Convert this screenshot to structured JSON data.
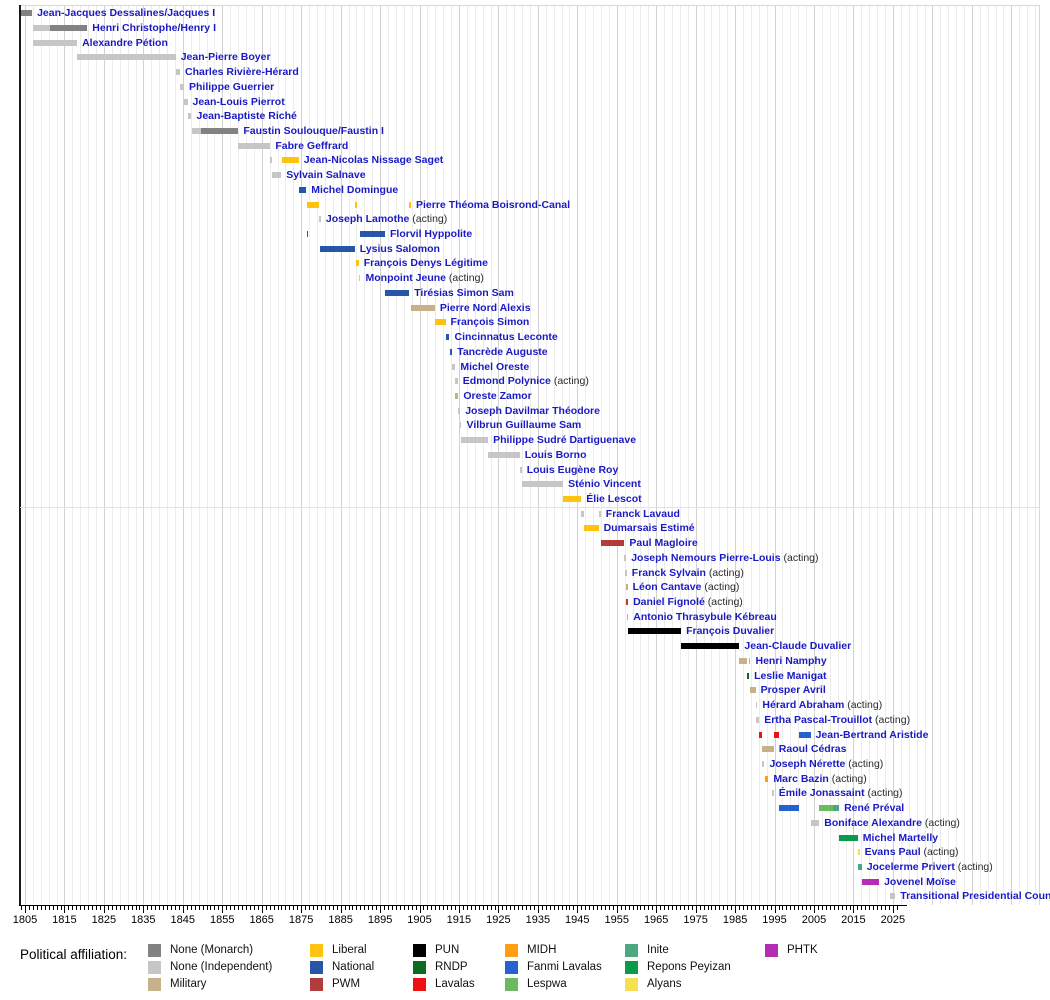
{
  "chart_data": {
    "type": "timeline",
    "axis": {
      "unit": "year",
      "start": 1805,
      "end": 2025,
      "label_step": 10,
      "minor_tick_step": 1,
      "minor_tick_start": 1804,
      "minor_tick_end": 2026,
      "grid_step": 2,
      "grid_extends_to": 2061,
      "tick_labels": [
        "1805",
        "1815",
        "1825",
        "1835",
        "1845",
        "1855",
        "1865",
        "1875",
        "1885",
        "1895",
        "1905",
        "1915",
        "1925",
        "1935",
        "1945",
        "1955",
        "1965",
        "1975",
        "1985",
        "1995",
        "2005",
        "2015",
        "2025"
      ]
    },
    "acting_suffix": "(acting)",
    "legend": {
      "title": "Political affiliation:",
      "columns": [
        [
          "monarch",
          "independent",
          "military"
        ],
        [
          "liberal",
          "national",
          "pwm"
        ],
        [
          "pun",
          "rndp",
          "lavalas"
        ],
        [
          "midh",
          "fanmi",
          "lespwa"
        ],
        [
          "inite",
          "repons",
          "alyans"
        ],
        [
          "phtk"
        ]
      ]
    },
    "affiliations": {
      "monarch": {
        "label": "None (Monarch)",
        "color": "#828282"
      },
      "independent": {
        "label": "None (Independent)",
        "color": "#c6c6c6"
      },
      "military": {
        "label": "Military",
        "color": "#c7b189"
      },
      "liberal": {
        "label": "Liberal",
        "color": "#ffc20e"
      },
      "national": {
        "label": "National",
        "color": "#2756a8"
      },
      "pwm": {
        "label": "PWM",
        "color": "#b23c3c"
      },
      "pun": {
        "label": "PUN",
        "color": "#000000"
      },
      "rndp": {
        "label": "RNDP",
        "color": "#0b6c21"
      },
      "lavalas": {
        "label": "Lavalas",
        "color": "#ee1111"
      },
      "midh": {
        "label": "MIDH",
        "color": "#ff9f0f"
      },
      "fanmi": {
        "label": "Fanmi Lavalas",
        "color": "#2462cf"
      },
      "lespwa": {
        "label": "Lespwa",
        "color": "#69bb5c"
      },
      "inite": {
        "label": "Inite",
        "color": "#4ca87e"
      },
      "repons": {
        "label": "Repons Peyizan",
        "color": "#089b4c"
      },
      "alyans": {
        "label": "Alyans",
        "color": "#f7e04f"
      },
      "phtk": {
        "label": "PHTK",
        "color": "#b32db5"
      }
    },
    "leaders": [
      {
        "name": "Jean-Jacques Dessalines/Jacques I",
        "acting": false,
        "segments": [
          [
            1804.0,
            1806.8,
            "monarch"
          ]
        ]
      },
      {
        "name": "Henri Christophe/Henry I",
        "acting": false,
        "segments": [
          [
            1806.9,
            1811.2,
            "independent"
          ],
          [
            1811.2,
            1820.8,
            "monarch"
          ]
        ]
      },
      {
        "name": "Alexandre Pétion",
        "acting": false,
        "segments": [
          [
            1806.9,
            1818.2,
            "independent"
          ]
        ]
      },
      {
        "name": "Jean-Pierre Boyer",
        "acting": false,
        "segments": [
          [
            1818.2,
            1843.2,
            "independent"
          ]
        ]
      },
      {
        "name": "Charles Rivière-Hérard",
        "acting": false,
        "segments": [
          [
            1843.2,
            1844.3,
            "independent"
          ]
        ]
      },
      {
        "name": "Philippe Guerrier",
        "acting": false,
        "segments": [
          [
            1844.3,
            1845.3,
            "independent"
          ]
        ]
      },
      {
        "name": "Jean-Louis Pierrot",
        "acting": false,
        "segments": [
          [
            1845.3,
            1846.2,
            "independent"
          ]
        ]
      },
      {
        "name": "Jean-Baptiste Riché",
        "acting": false,
        "segments": [
          [
            1846.2,
            1847.2,
            "independent"
          ]
        ]
      },
      {
        "name": "Faustin Soulouque/Faustin I",
        "acting": false,
        "segments": [
          [
            1847.2,
            1849.7,
            "independent"
          ],
          [
            1849.7,
            1859.1,
            "monarch"
          ]
        ]
      },
      {
        "name": "Fabre Geffrard",
        "acting": false,
        "segments": [
          [
            1859.1,
            1867.2,
            "independent"
          ]
        ]
      },
      {
        "name": "Jean-Nicolas Nissage Saget",
        "acting": false,
        "segments": [
          [
            1867.2,
            1867.5,
            "independent"
          ],
          [
            1870.2,
            1874.4,
            "liberal"
          ]
        ]
      },
      {
        "name": "Sylvain Salnave",
        "acting": false,
        "segments": [
          [
            1867.5,
            1869.95,
            "independent"
          ]
        ]
      },
      {
        "name": "Michel Domingue",
        "acting": false,
        "segments": [
          [
            1874.4,
            1876.3,
            "national"
          ]
        ]
      },
      {
        "name": "Pierre Théoma Boisrond-Canal",
        "acting": false,
        "segments": [
          [
            1876.5,
            1879.55,
            "liberal"
          ],
          [
            1888.6,
            1888.85,
            "liberal"
          ],
          [
            1902.4,
            1902.65,
            "liberal"
          ]
        ]
      },
      {
        "name": "Joseph Lamothe",
        "acting": true,
        "segments": [
          [
            1879.55,
            1879.8,
            "independent"
          ]
        ]
      },
      {
        "name": "Florvil Hyppolite",
        "acting": false,
        "segments": [
          [
            1876.4,
            1876.8,
            "national"
          ],
          [
            1889.8,
            1896.25,
            "national"
          ]
        ]
      },
      {
        "name": "Lysius Salomon",
        "acting": false,
        "segments": [
          [
            1879.8,
            1888.6,
            "national"
          ]
        ]
      },
      {
        "name": "François Denys Légitime",
        "acting": false,
        "segments": [
          [
            1888.85,
            1889.6,
            "liberal"
          ]
        ]
      },
      {
        "name": "Monpoint Jeune",
        "acting": true,
        "segments": [
          [
            1889.6,
            1889.8,
            "independent"
          ]
        ]
      },
      {
        "name": "Tirésias Simon Sam",
        "acting": false,
        "segments": [
          [
            1896.25,
            1902.4,
            "national"
          ]
        ]
      },
      {
        "name": "Pierre Nord Alexis",
        "acting": false,
        "segments": [
          [
            1902.9,
            1908.9,
            "military"
          ]
        ]
      },
      {
        "name": "François Simon",
        "acting": false,
        "segments": [
          [
            1908.9,
            1911.6,
            "liberal"
          ]
        ]
      },
      {
        "name": "Cincinnatus Leconte",
        "acting": false,
        "segments": [
          [
            1911.6,
            1912.6,
            "national"
          ]
        ]
      },
      {
        "name": "Tancrède Auguste",
        "acting": false,
        "segments": [
          [
            1912.6,
            1913.3,
            "national"
          ]
        ]
      },
      {
        "name": "Michel Oreste",
        "acting": false,
        "segments": [
          [
            1913.3,
            1914.1,
            "independent"
          ]
        ]
      },
      {
        "name": "Edmond Polynice",
        "acting": true,
        "segments": [
          [
            1914.05,
            1914.12,
            "independent"
          ],
          [
            1914.25,
            1914.32,
            "independent"
          ]
        ]
      },
      {
        "name": "Oreste Zamor",
        "acting": false,
        "segments": [
          [
            1914.1,
            1914.85,
            "military"
          ]
        ]
      },
      {
        "name": "Joseph Davilmar Théodore",
        "acting": false,
        "segments": [
          [
            1914.85,
            1915.2,
            "independent"
          ]
        ]
      },
      {
        "name": "Vilbrun Guillaume Sam",
        "acting": false,
        "segments": [
          [
            1915.2,
            1915.6,
            "independent"
          ]
        ]
      },
      {
        "name": "Philippe Sudré Dartiguenave",
        "acting": false,
        "segments": [
          [
            1915.6,
            1922.4,
            "independent"
          ]
        ]
      },
      {
        "name": "Louis Borno",
        "acting": false,
        "segments": [
          [
            1922.4,
            1930.4,
            "independent"
          ]
        ]
      },
      {
        "name": "Louis Eugène Roy",
        "acting": false,
        "segments": [
          [
            1930.4,
            1930.9,
            "independent"
          ]
        ]
      },
      {
        "name": "Sténio Vincent",
        "acting": false,
        "segments": [
          [
            1930.9,
            1941.4,
            "independent"
          ]
        ]
      },
      {
        "name": "Élie Lescot",
        "acting": false,
        "segments": [
          [
            1941.4,
            1946.0,
            "liberal"
          ]
        ]
      },
      {
        "name": "Franck Lavaud",
        "acting": false,
        "segments": [
          [
            1946.0,
            1946.6,
            "independent"
          ],
          [
            1950.4,
            1950.95,
            "independent"
          ]
        ]
      },
      {
        "name": "Dumarsais Estimé",
        "acting": false,
        "segments": [
          [
            1946.6,
            1950.4,
            "liberal"
          ]
        ]
      },
      {
        "name": "Paul Magloire",
        "acting": false,
        "segments": [
          [
            1950.95,
            1956.95,
            "pwm"
          ]
        ]
      },
      {
        "name": "Joseph Nemours Pierre-Louis",
        "acting": true,
        "segments": [
          [
            1956.95,
            1957.1,
            "independent"
          ]
        ]
      },
      {
        "name": "Franck Sylvain",
        "acting": true,
        "segments": [
          [
            1957.1,
            1957.3,
            "independent"
          ]
        ]
      },
      {
        "name": "Léon Cantave",
        "acting": true,
        "segments": [
          [
            1957.3,
            1957.42,
            "military"
          ]
        ]
      },
      {
        "name": "Daniel Fignolé",
        "acting": true,
        "segments": [
          [
            1957.42,
            1957.48,
            "pwm"
          ]
        ]
      },
      {
        "name": "Antonio Thrasybule Kébreau",
        "acting": false,
        "segments": [
          [
            1957.48,
            1957.8,
            "military"
          ]
        ]
      },
      {
        "name": "François Duvalier",
        "acting": false,
        "segments": [
          [
            1957.8,
            1971.3,
            "pun"
          ]
        ]
      },
      {
        "name": "Jean-Claude Duvalier",
        "acting": false,
        "segments": [
          [
            1971.3,
            1986.1,
            "pun"
          ]
        ]
      },
      {
        "name": "Henri Namphy",
        "acting": false,
        "segments": [
          [
            1986.1,
            1988.1,
            "military"
          ],
          [
            1988.45,
            1988.7,
            "military"
          ]
        ]
      },
      {
        "name": "Leslie Manigat",
        "acting": false,
        "segments": [
          [
            1988.1,
            1988.45,
            "rndp"
          ]
        ]
      },
      {
        "name": "Prosper Avril",
        "acting": false,
        "segments": [
          [
            1988.7,
            1990.2,
            "military"
          ]
        ]
      },
      {
        "name": "Hérard Abraham",
        "acting": true,
        "segments": [
          [
            1990.2,
            1990.3,
            "independent"
          ]
        ]
      },
      {
        "name": "Ertha Pascal-Trouillot",
        "acting": true,
        "segments": [
          [
            1990.3,
            1991.1,
            "independent"
          ]
        ]
      },
      {
        "name": "Jean-Bertrand Aristide",
        "acting": false,
        "segments": [
          [
            1991.1,
            1991.75,
            "lavalas"
          ],
          [
            1994.8,
            1996.1,
            "lavalas"
          ],
          [
            2001.1,
            2004.15,
            "fanmi"
          ]
        ]
      },
      {
        "name": "Raoul Cédras",
        "acting": false,
        "segments": [
          [
            1991.75,
            1994.8,
            "military"
          ]
        ]
      },
      {
        "name": "Joseph Nérette",
        "acting": true,
        "segments": [
          [
            1991.75,
            1992.45,
            "independent"
          ]
        ]
      },
      {
        "name": "Marc Bazin",
        "acting": true,
        "segments": [
          [
            1992.45,
            1993.45,
            "midh"
          ]
        ]
      },
      {
        "name": "Émile Jonassaint",
        "acting": true,
        "segments": [
          [
            1994.35,
            1994.8,
            "independent"
          ]
        ]
      },
      {
        "name": "René Préval",
        "acting": false,
        "segments": [
          [
            1996.1,
            2001.1,
            "fanmi"
          ],
          [
            2006.35,
            2009.8,
            "lespwa"
          ],
          [
            2009.8,
            2011.35,
            "inite"
          ]
        ]
      },
      {
        "name": "Boniface Alexandre",
        "acting": true,
        "segments": [
          [
            2004.15,
            2006.35,
            "independent"
          ]
        ]
      },
      {
        "name": "Michel Martelly",
        "acting": false,
        "segments": [
          [
            2011.35,
            2016.1,
            "repons"
          ]
        ]
      },
      {
        "name": "Evans Paul",
        "acting": true,
        "segments": [
          [
            2016.1,
            2016.22,
            "alyans"
          ]
        ]
      },
      {
        "name": "Jocelerme Privert",
        "acting": true,
        "segments": [
          [
            2016.22,
            2017.1,
            "inite"
          ]
        ]
      },
      {
        "name": "Jovenel Moïse",
        "acting": false,
        "segments": [
          [
            2017.1,
            2021.5,
            "phtk"
          ]
        ]
      },
      {
        "name": "Transitional Presidential Council",
        "acting": false,
        "segments": [
          [
            2024.3,
            2025.6,
            "independent"
          ]
        ]
      }
    ]
  }
}
